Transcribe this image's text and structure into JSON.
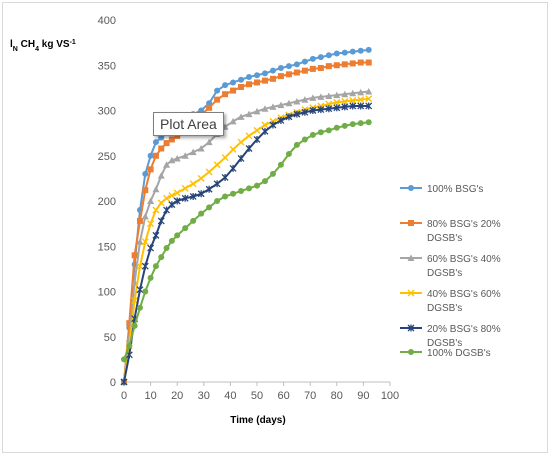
{
  "chart_data": {
    "type": "line",
    "title": "",
    "xlabel": "Time (days)",
    "ylabel": {
      "base": "l",
      "sub1": "N",
      "mid": " CH",
      "sub2": "4",
      "tail": " kg VS",
      "sup": "-1"
    },
    "xlim": [
      0,
      100
    ],
    "ylim": [
      0,
      400
    ],
    "xticks": [
      0,
      10,
      20,
      30,
      40,
      50,
      60,
      70,
      80,
      90,
      100
    ],
    "yticks": [
      0,
      50,
      100,
      150,
      200,
      250,
      300,
      350,
      400
    ],
    "grid": false,
    "legend": "right",
    "tooltip": "Plot Area",
    "x": [
      0,
      2,
      4,
      6,
      8,
      10,
      12,
      14,
      16,
      18,
      20,
      23,
      26,
      29,
      32,
      35,
      38,
      41,
      44,
      47,
      50,
      53,
      56,
      59,
      62,
      65,
      68,
      71,
      74,
      77,
      80,
      83,
      86,
      89,
      92
    ],
    "series": [
      {
        "name": "100% BSG's",
        "color": "#5B9BD5",
        "marker": "circle",
        "values": [
          0,
          60,
          130,
          190,
          230,
          250,
          265,
          270,
          275,
          280,
          284,
          290,
          296,
          300,
          308,
          322,
          328,
          331,
          334,
          337,
          339,
          341,
          344,
          347,
          349,
          351,
          354,
          357,
          359,
          361,
          363,
          364,
          365,
          366,
          367
        ]
      },
      {
        "name": "80% BSG's 20% DGSB's",
        "color": "#ED7D31",
        "marker": "square",
        "values": [
          0,
          65,
          140,
          178,
          212,
          235,
          250,
          258,
          264,
          268,
          272,
          280,
          288,
          295,
          303,
          312,
          318,
          322,
          326,
          329,
          331,
          333,
          335,
          338,
          340,
          342,
          344,
          346,
          347,
          349,
          350,
          351,
          352,
          353,
          353
        ]
      },
      {
        "name": "60% BSG's 40% DGSB's",
        "color": "#A5A5A5",
        "marker": "triangle",
        "values": [
          0,
          48,
          110,
          155,
          183,
          200,
          213,
          228,
          240,
          245,
          247,
          250,
          254,
          258,
          265,
          274,
          282,
          288,
          293,
          296,
          299,
          302,
          304,
          306,
          308,
          310,
          312,
          314,
          315,
          316,
          317,
          318,
          319,
          320,
          321
        ]
      },
      {
        "name": "40% BSG's 60% DGSB's",
        "color": "#FFC000",
        "marker": "x",
        "values": [
          0,
          40,
          90,
          128,
          155,
          175,
          190,
          198,
          203,
          206,
          209,
          214,
          219,
          225,
          232,
          240,
          248,
          257,
          265,
          272,
          278,
          284,
          288,
          292,
          295,
          298,
          301,
          303,
          305,
          307,
          309,
          310,
          311,
          312,
          313
        ]
      },
      {
        "name": "20% BSG's 80% DGSB's",
        "color": "#264478",
        "marker": "star",
        "values": [
          0,
          30,
          70,
          102,
          128,
          148,
          162,
          178,
          190,
          196,
          200,
          203,
          205,
          208,
          213,
          219,
          226,
          236,
          247,
          258,
          268,
          277,
          284,
          289,
          293,
          296,
          298,
          300,
          301,
          302,
          303,
          304,
          305,
          305,
          305
        ]
      },
      {
        "name": "100% DGSB's",
        "color": "#70AD47",
        "marker": "circle",
        "values": [
          25,
          40,
          62,
          82,
          100,
          115,
          128,
          138,
          148,
          156,
          162,
          170,
          178,
          186,
          193,
          200,
          205,
          208,
          211,
          214,
          217,
          222,
          230,
          240,
          252,
          262,
          268,
          273,
          276,
          278,
          281,
          283,
          285,
          286,
          287
        ]
      }
    ]
  }
}
